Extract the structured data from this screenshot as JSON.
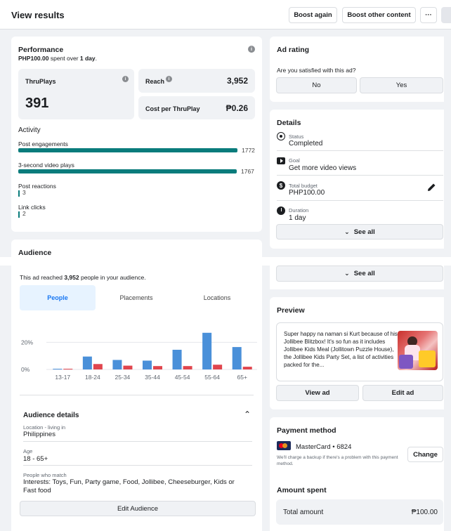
{
  "header": {
    "title": "View results",
    "boost_again": "Boost again",
    "boost_other": "Boost other content",
    "more": "···"
  },
  "performance": {
    "title": "Performance",
    "spent_amount": "PHP100.00",
    "spent_mid": " spent over ",
    "spent_days": "1 day",
    "spent_end": ".",
    "thruplays_label": "ThruPlays",
    "thruplays_value": "391",
    "reach_label": "Reach",
    "reach_value": "3,952",
    "cpt_label": "Cost per ThruPlay",
    "cpt_value": "₱0.26"
  },
  "activity": {
    "title": "Activity",
    "items": [
      {
        "label": "Post engagements",
        "value": "1772",
        "fraction": 1.0
      },
      {
        "label": "3-second video plays",
        "value": "1767",
        "fraction": 0.997
      },
      {
        "label": "Post reactions",
        "value": "3",
        "fraction": 0.0017
      },
      {
        "label": "Link clicks",
        "value": "2",
        "fraction": 0.0011
      }
    ]
  },
  "audience": {
    "title": "Audience",
    "reach_pre": "This ad reached ",
    "reach_num": "3,952",
    "reach_post": " people in your audience.",
    "tabs": [
      "People",
      "Placements",
      "Locations"
    ],
    "details_title": "Audience details",
    "location_label": "Location - living in",
    "location_value": "Philippines",
    "age_label": "Age",
    "age_value": "18 - 65+",
    "interests_label": "People who match",
    "interests_value": "Interests: Toys, Fun, Party game, Food, Jollibee, Cheeseburger, Kids or Fast food",
    "edit_audience": "Edit Audience"
  },
  "chart_data": {
    "type": "bar",
    "categories": [
      "13-17",
      "18-24",
      "25-34",
      "35-44",
      "45-54",
      "55-64",
      "65+"
    ],
    "series": [
      {
        "color": "#4a90d9",
        "values": [
          0.3,
          9.5,
          7.0,
          6.5,
          14.5,
          27.0,
          16.5
        ]
      },
      {
        "color": "#e0454e",
        "values": [
          0.2,
          4.0,
          2.8,
          2.5,
          2.5,
          3.5,
          2.0
        ]
      }
    ],
    "yticks": [
      "20%",
      "0%"
    ],
    "ylim": [
      0,
      30
    ]
  },
  "ad_rating": {
    "title": "Ad rating",
    "question": "Are you satisfied with this ad?",
    "no": "No",
    "yes": "Yes"
  },
  "details": {
    "title": "Details",
    "status_label": "Status",
    "status_value": "Completed",
    "goal_label": "Goal",
    "goal_value": "Get more video views",
    "budget_label": "Total budget",
    "budget_value": "PHP100.00",
    "duration_label": "Duration",
    "duration_value": "1 day",
    "see_all": "See all",
    "see_all_2": "See all"
  },
  "preview": {
    "title": "Preview",
    "text": "Super happy na naman si Kurt because of his Jollibee Blitzbox! It's so fun as it includes Jollibee Kids Meal (Jollitown Puzzle House), the Jollibee Kids Party Set, a list of activities packed for the...",
    "view_ad": "View ad",
    "edit_ad": "Edit ad"
  },
  "payment": {
    "title": "Payment method",
    "card": "MasterCard • 6824",
    "note": "We'll charge a backup if there's a problem with this payment method.",
    "change": "Change"
  },
  "amount": {
    "title": "Amount spent",
    "total_label": "Total amount",
    "total_value": "₱100.00"
  }
}
